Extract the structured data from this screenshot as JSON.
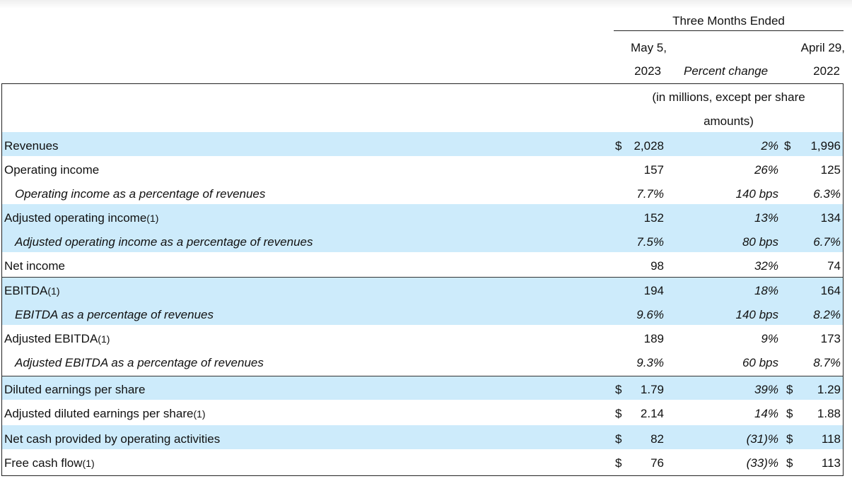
{
  "header": {
    "period_group": "Three Months Ended",
    "col1_line1": "May 5,",
    "col1_line2": "2023",
    "pct_label": "Percent change",
    "col2_line1": "April 29,",
    "col2_line2": "2022",
    "units_line1": "(in millions, except per share",
    "units_line2": "amounts)"
  },
  "rows": [
    {
      "label": "Revenues",
      "note": "",
      "cur_sign": "$",
      "v1": "2,028",
      "pct": "2%",
      "v2": "1,996"
    },
    {
      "label": "Operating income",
      "note": "",
      "v1": "157",
      "pct": "26%",
      "v2": "125"
    },
    {
      "label": "Operating income as a percentage of revenues",
      "note": "",
      "v1": "7.7%",
      "pct": "140 bps",
      "v2": "6.3%"
    },
    {
      "label": "Adjusted operating income",
      "note": "(1)",
      "v1": "152",
      "pct": "13%",
      "v2": "134"
    },
    {
      "label": "Adjusted operating income as a percentage of revenues",
      "note": "",
      "v1": "7.5%",
      "pct": "80 bps",
      "v2": "6.7%"
    },
    {
      "label": "Net income",
      "note": "",
      "v1": "98",
      "pct": "32%",
      "v2": "74"
    },
    {
      "label": "EBITDA",
      "note": "(1)",
      "v1": "194",
      "pct": "18%",
      "v2": "164"
    },
    {
      "label": "EBITDA as a percentage of revenues",
      "note": "",
      "v1": "9.6%",
      "pct": "140 bps",
      "v2": "8.2%"
    },
    {
      "label": "Adjusted EBITDA",
      "note": "(1)",
      "v1": "189",
      "pct": "9%",
      "v2": "173"
    },
    {
      "label": "Adjusted EBITDA as a percentage of revenues",
      "note": "",
      "v1": "9.3%",
      "pct": "60 bps",
      "v2": "8.7%"
    },
    {
      "label": "Diluted earnings per share",
      "note": "",
      "cur_sign": "$",
      "v1": "1.79",
      "pct": "39%",
      "v2": "1.29"
    },
    {
      "label": "Adjusted diluted earnings per share",
      "note": "(1)",
      "cur_sign": "$",
      "v1": "2.14",
      "pct": "14%",
      "v2": "1.88"
    },
    {
      "label": "Net cash provided by operating activities",
      "note": "",
      "cur_sign": "$",
      "v1": "82",
      "pct": "(31)%",
      "v2": "118"
    },
    {
      "label": "Free cash flow",
      "note": "(1)",
      "cur_sign": "$",
      "v1": "76",
      "pct": "(33)%",
      "v2": "113"
    }
  ],
  "colors": {
    "band": "#cdebfb",
    "rule": "#222222"
  }
}
